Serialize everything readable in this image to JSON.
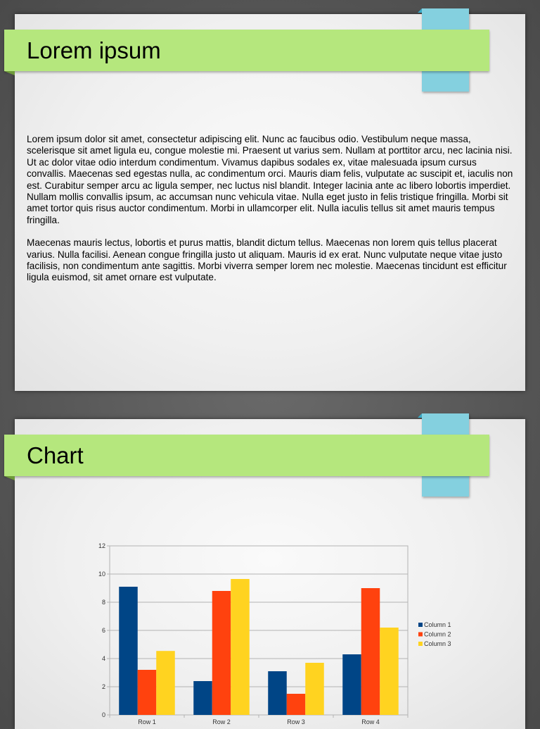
{
  "slides": [
    {
      "title": "Lorem ipsum",
      "paragraphs": [
        "Lorem ipsum dolor sit amet, consectetur adipiscing elit. Nunc ac faucibus odio. Vestibulum neque massa, scelerisque sit amet ligula eu, congue molestie mi. Praesent ut varius sem. Nullam at porttitor arcu, nec lacinia nisi. Ut ac dolor vitae odio interdum condimentum. Vivamus dapibus sodales ex, vitae malesuada ipsum cursus convallis. Maecenas sed egestas nulla, ac condimentum orci. Mauris diam felis, vulputate ac suscipit et, iaculis non est. Curabitur semper arcu ac ligula semper, nec luctus nisl blandit. Integer lacinia ante ac libero lobortis imperdiet. Nullam mollis convallis ipsum, ac accumsan nunc vehicula vitae. Nulla eget justo in felis tristique fringilla. Morbi sit amet tortor quis risus auctor condimentum. Morbi in ullamcorper elit. Nulla iaculis tellus sit amet mauris tempus fringilla.",
        "Maecenas mauris lectus, lobortis et purus mattis, blandit dictum tellus. Maecenas non lorem quis tellus placerat varius. Nulla facilisi. Aenean congue fringilla justo ut aliquam. Mauris id ex erat. Nunc vulputate neque vitae justo facilisis, non condimentum ante sagittis. Morbi viverra semper lorem nec molestie. Maecenas tincidunt est efficitur ligula euismod, sit amet ornare est vulputate."
      ]
    },
    {
      "title": "Chart"
    }
  ],
  "colors": {
    "banner": "#b5e77d",
    "tab": "#84d0df"
  },
  "chart_data": {
    "type": "bar",
    "categories": [
      "Row 1",
      "Row 2",
      "Row 3",
      "Row 4"
    ],
    "series": [
      {
        "name": "Column 1",
        "color": "#004586",
        "values": [
          9.1,
          2.4,
          3.1,
          4.3
        ]
      },
      {
        "name": "Column 2",
        "color": "#ff420e",
        "values": [
          3.2,
          8.8,
          1.5,
          9.0
        ]
      },
      {
        "name": "Column 3",
        "color": "#ffd320",
        "values": [
          4.54,
          9.65,
          3.7,
          6.2
        ]
      }
    ],
    "yticks": [
      "0",
      "2",
      "4",
      "6",
      "8",
      "10",
      "12"
    ],
    "ylim": [
      0,
      12
    ],
    "grid": true,
    "legend": "right"
  }
}
